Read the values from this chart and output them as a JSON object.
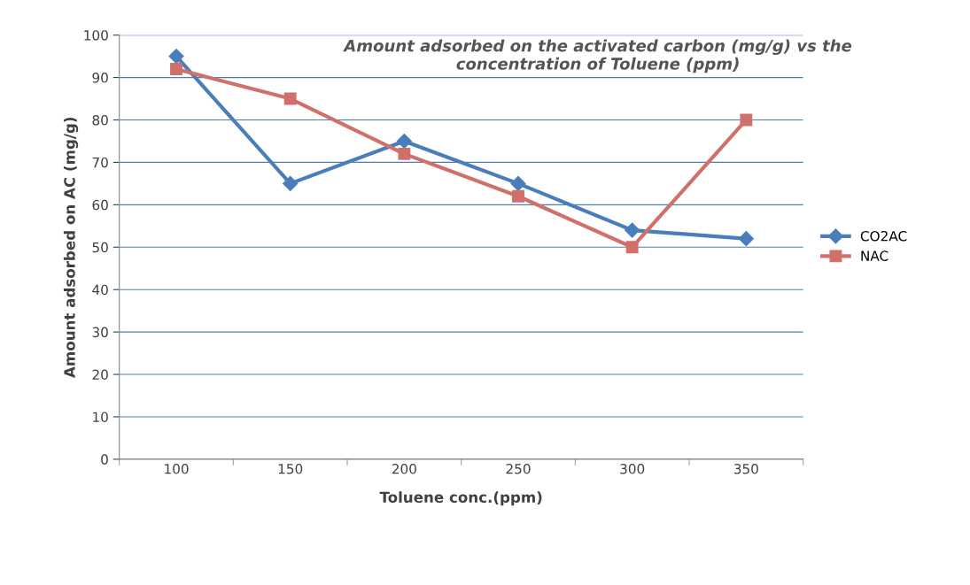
{
  "chart_data": {
    "type": "line",
    "title": "Amount adsorbed on the activated carbon (mg/g) vs the\nconcentration of Toluene (ppm)",
    "xlabel": "Toluene conc.(ppm)",
    "ylabel": "Amount adsorbed on AC (mg/g)",
    "categories": [
      "100",
      "150",
      "200",
      "250",
      "300",
      "350"
    ],
    "series": [
      {
        "name": "CO2AC",
        "color": "#4a7ebb",
        "marker": "diamond",
        "values": [
          95,
          65,
          75,
          65,
          54,
          52
        ]
      },
      {
        "name": "NAC",
        "color": "#d0706a",
        "marker": "square",
        "values": [
          92,
          85,
          72,
          62,
          50,
          80
        ]
      }
    ],
    "ylim": [
      0,
      100
    ],
    "yticks": [
      0,
      10,
      20,
      30,
      40,
      50,
      60,
      70,
      80,
      90,
      100
    ],
    "grid": "y",
    "legend": "right",
    "line_style": "solid"
  }
}
